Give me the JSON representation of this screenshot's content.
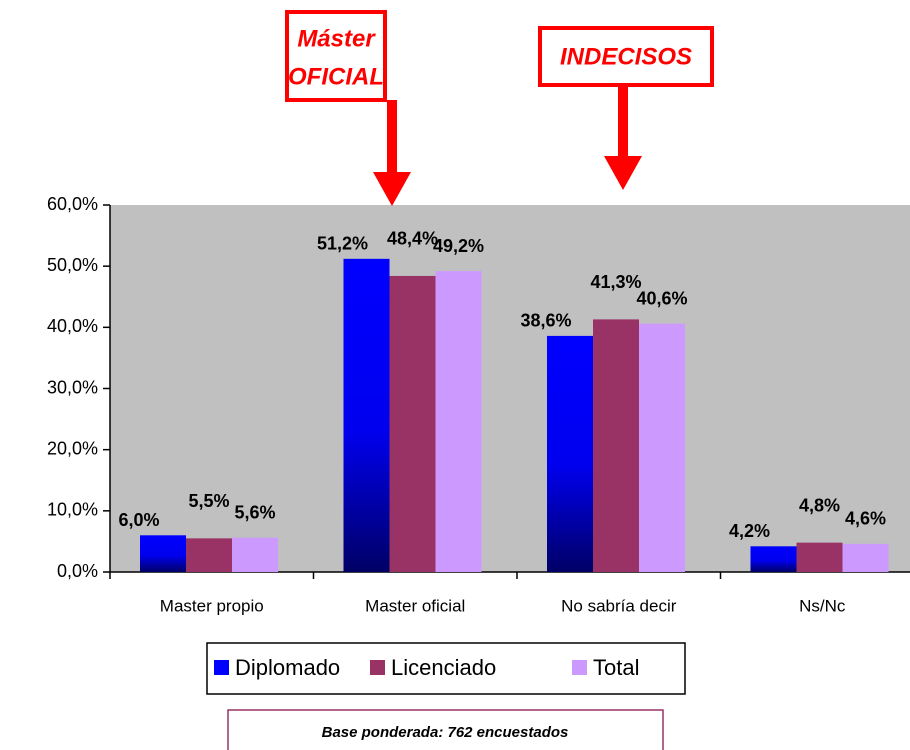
{
  "chart_data": {
    "type": "bar",
    "categories": [
      "Master propio",
      "Master oficial",
      "No sabría decir",
      "Ns/Nc"
    ],
    "series": [
      {
        "name": "Diplomado",
        "color": "#0000ff",
        "values": [
          6.0,
          51.2,
          38.6,
          4.2
        ],
        "value_labels": [
          "6,0%",
          "51,2%",
          "38,6%",
          "4,2%"
        ]
      },
      {
        "name": "Licenciado",
        "color": "#993366",
        "values": [
          5.5,
          48.4,
          41.3,
          4.8
        ],
        "value_labels": [
          "5,5%",
          "48,4%",
          "41,3%",
          "4,8%"
        ]
      },
      {
        "name": "Total",
        "color": "#cc99ff",
        "values": [
          5.6,
          49.2,
          40.6,
          4.6
        ],
        "value_labels": [
          "5,6%",
          "49,2%",
          "40,6%",
          "4,6%"
        ]
      }
    ],
    "ylim": [
      0,
      60
    ],
    "yticks": [
      {
        "value": 0,
        "label": "0,0%"
      },
      {
        "value": 10,
        "label": "10,0%"
      },
      {
        "value": 20,
        "label": "20,0%"
      },
      {
        "value": 30,
        "label": "30,0%"
      },
      {
        "value": 40,
        "label": "40,0%"
      },
      {
        "value": 50,
        "label": "50,0%"
      },
      {
        "value": 60,
        "label": "60,0%"
      }
    ],
    "annotations": [
      {
        "lines": [
          "Máster",
          "OFICIAL"
        ]
      },
      {
        "lines": [
          "INDECISOS"
        ]
      }
    ],
    "footnote": "Base ponderada: 762 encuestados"
  }
}
